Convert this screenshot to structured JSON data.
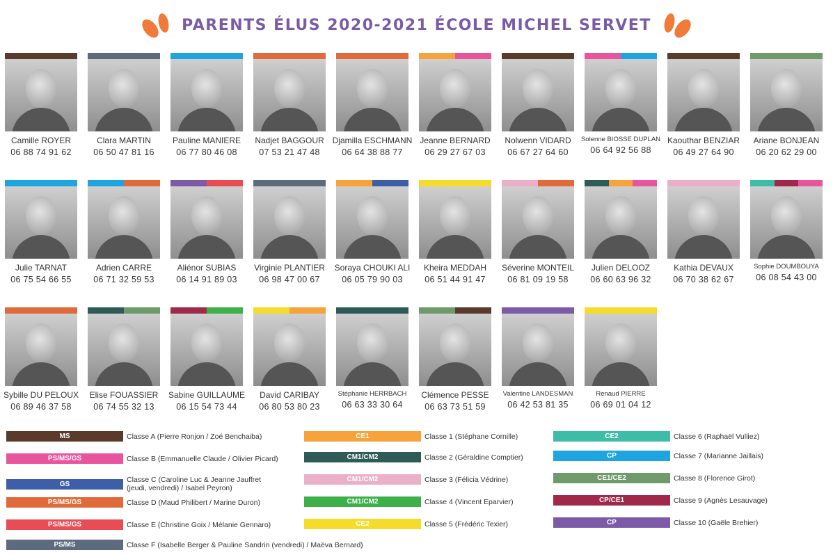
{
  "header": {
    "title": "PARENTS ÉLUS 2020-2021 ÉCOLE MICHEL SERVET",
    "accent": "#f07a3a"
  },
  "rows": [
    [
      {
        "name": "Camille ROYER",
        "phone": "06 88 74 91 62",
        "colors": [
          "#5a3a2a"
        ]
      },
      {
        "name": "Clara MARTIN",
        "phone": "06 50 47 81 16",
        "colors": [
          "#5d6b7e"
        ]
      },
      {
        "name": "Pauline MANIERE",
        "phone": "06 77 80 46 08",
        "colors": [
          "#1ea5e0"
        ]
      },
      {
        "name": "Nadjet BAGGOUR",
        "phone": "07 53 21 47 48",
        "colors": [
          "#e06a3a"
        ]
      },
      {
        "name": "Djamilla ESCHMANN",
        "phone": "06 64 38 88 77",
        "colors": [
          "#e06a3a"
        ]
      },
      {
        "name": "Jeanne BERNARD",
        "phone": "06 29 27 67 03",
        "colors": [
          "#f5a33a",
          "#e8559c"
        ]
      },
      {
        "name": "Nolwenn VIDARD",
        "phone": "06 67 27 64 60",
        "colors": [
          "#5a3a2a"
        ]
      },
      {
        "name": "Solenne BIOSSE DUPLAN",
        "phone": "06 64 92 56 88",
        "colors": [
          "#e8559c",
          "#1ea5e0"
        ],
        "small": true
      },
      {
        "name": "Kaouthar BENZIAR",
        "phone": "06 49 27 64 90",
        "colors": [
          "#5a3a2a"
        ]
      },
      {
        "name": "Ariane BONJEAN",
        "phone": "06 20 62 29 00",
        "colors": [
          "#6f9a6a"
        ]
      }
    ],
    [
      {
        "name": "Julie TARNAT",
        "phone": "06 75 54 66 55",
        "colors": [
          "#1ea5e0"
        ]
      },
      {
        "name": "Adrien CARRE",
        "phone": "06 71 32 59 53",
        "colors": [
          "#1ea5e0",
          "#e06a3a"
        ]
      },
      {
        "name": "Aliénor SUBIAS",
        "phone": "06 14 91 89 03",
        "colors": [
          "#7d5aa8",
          "#e84c55"
        ]
      },
      {
        "name": "Virginie PLANTIER",
        "phone": "06 98 47 00 67",
        "colors": [
          "#5d6b7e"
        ]
      },
      {
        "name": "Soraya CHOUKI ALI",
        "phone": "06 05 79 90 03",
        "colors": [
          "#f5a33a",
          "#3e5fa8"
        ]
      },
      {
        "name": "Kheira MEDDAH",
        "phone": "06 51 44 91 47",
        "colors": [
          "#f5dc2a"
        ]
      },
      {
        "name": "Séverine MONTEIL",
        "phone": "06 81 09 19 58",
        "colors": [
          "#ebb0c8",
          "#e06a3a"
        ]
      },
      {
        "name": "Julien DELOOZ",
        "phone": "06 60 63 96 32",
        "colors": [
          "#2e5b55",
          "#f5a33a",
          "#e8559c"
        ]
      },
      {
        "name": "Kathia DEVAUX",
        "phone": "06 70 38 62 67",
        "colors": [
          "#ebb0c8"
        ]
      },
      {
        "name": "Sophie DOUMBOUYA",
        "phone": "06 08 54 43 00",
        "colors": [
          "#3dbda8",
          "#a0284a",
          "#e8559c"
        ],
        "small": true
      }
    ],
    [
      {
        "name": "Sybille DU PELOUX",
        "phone": "06 89 46 37 58",
        "colors": [
          "#e06a3a"
        ]
      },
      {
        "name": "Elise FOUASSIER",
        "phone": "06 74 55 32 13",
        "colors": [
          "#2e5b55",
          "#6f9a6a"
        ]
      },
      {
        "name": "Sabine GUILLAUME",
        "phone": "06 15 54 73 44",
        "colors": [
          "#a0284a",
          "#3db04a"
        ]
      },
      {
        "name": "David CARIBAY",
        "phone": "06 80 53 80 23",
        "colors": [
          "#f5dc2a",
          "#f5a33a"
        ]
      },
      {
        "name": "Stéphanie HERRBACH",
        "phone": "06 63 33 30 64",
        "colors": [
          "#2e5b55"
        ],
        "small": true
      },
      {
        "name": "Clémence PESSE",
        "phone": "06 63 73 51 59",
        "colors": [
          "#6f9a6a",
          "#5a3a2a"
        ]
      },
      {
        "name": "Valentine LANDESMAN",
        "phone": "06 42 53 81 35",
        "colors": [
          "#7d5aa8"
        ],
        "small": true
      },
      {
        "name": "Renaud PIERRE",
        "phone": "06 69 01 04 12",
        "colors": [
          "#f5dc2a"
        ],
        "small": true
      }
    ]
  ],
  "legend": [
    [
      {
        "chip": "MS",
        "color": "#5a3a2a",
        "label": "Classe A (Pierre Ronjon / Zoé Benchaiba)"
      },
      {
        "chip": "PS/MS/GS",
        "color": "#e8559c",
        "label": "Classe B (Emmanuelle Claude / Olivier Picard)"
      },
      {
        "chip": "GS",
        "color": "#3e5fa8",
        "label": "Classe C (Caroline Luc & Jeanne Jauffret (jeudi, vendredi) / Isabel Peyron)"
      },
      {
        "chip": "PS/MS/GS",
        "color": "#e06a3a",
        "label": "Classe D (Maud Philibert / Marine Duron)"
      },
      {
        "chip": "PS/MS/GS",
        "color": "#e84c55",
        "label": "Classe E (Christine Goix / Mélanie Gennaro)"
      },
      {
        "chip": "PS/MS",
        "color": "#5d6b7e",
        "label": "Classe F (Isabelle Berger & Pauline Sandrin (vendredi) / Maëva Bernard)"
      }
    ],
    [
      {
        "chip": "CE1",
        "color": "#f5a33a",
        "label": "Classe 1  (Stéphane Cornille)"
      },
      {
        "chip": "CM1/CM2",
        "color": "#2e5b55",
        "label": "Classe 2  (Géraldine Comptier)"
      },
      {
        "chip": "CM1/CM2",
        "color": "#ebb0c8",
        "label": "Classe 3 (Félicia Védrine)"
      },
      {
        "chip": "CM1/CM2",
        "color": "#3db04a",
        "label": "Classe 4 (Vincent Eparvier)"
      },
      {
        "chip": "CE2",
        "color": "#f5dc2a",
        "label": "Classe 5 (Frédéric Texier)"
      }
    ],
    [
      {
        "chip": "CE2",
        "color": "#3dbda8",
        "label": "Classe 6 (Raphaël Vulliez)"
      },
      {
        "chip": "CP",
        "color": "#1ea5e0",
        "label": "Classe 7 (Marianne Jaillais)"
      },
      {
        "chip": "CE1/CE2",
        "color": "#6f9a6a",
        "label": "Classe 8 (Florence Girot)"
      },
      {
        "chip": "CP/CE1",
        "color": "#a0284a",
        "label": "Classe 9 (Agnès Lesauvage)"
      },
      {
        "chip": "CP",
        "color": "#7d5aa8",
        "label": "Classe 10 (Gaële Brehier)"
      }
    ]
  ]
}
